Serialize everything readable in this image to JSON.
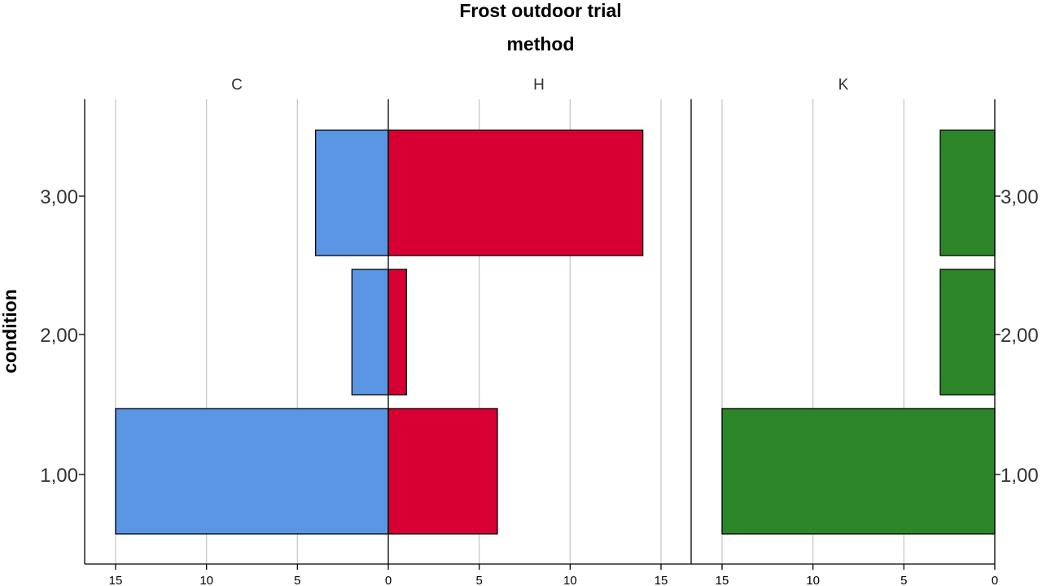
{
  "chart_data": {
    "type": "bar",
    "title": "Frost outdoor trial",
    "panel_title": "method",
    "ylabel": "condition",
    "categories": [
      "3,00",
      "2,00",
      "1,00"
    ],
    "panels": [
      "C",
      "H",
      "K"
    ],
    "xlim": [
      0,
      15
    ],
    "x_ticks": [
      "15",
      "10",
      "5",
      "0",
      "5",
      "10",
      "15",
      "15",
      "10",
      "5",
      "0"
    ],
    "grid": true,
    "series": [
      {
        "name": "C",
        "color": "#5b96e5",
        "values": [
          4,
          2,
          15
        ]
      },
      {
        "name": "H",
        "color": "#d80032",
        "values": [
          14,
          1,
          6
        ]
      },
      {
        "name": "K",
        "color": "#2c8628",
        "values": [
          3,
          3,
          15
        ]
      }
    ]
  }
}
